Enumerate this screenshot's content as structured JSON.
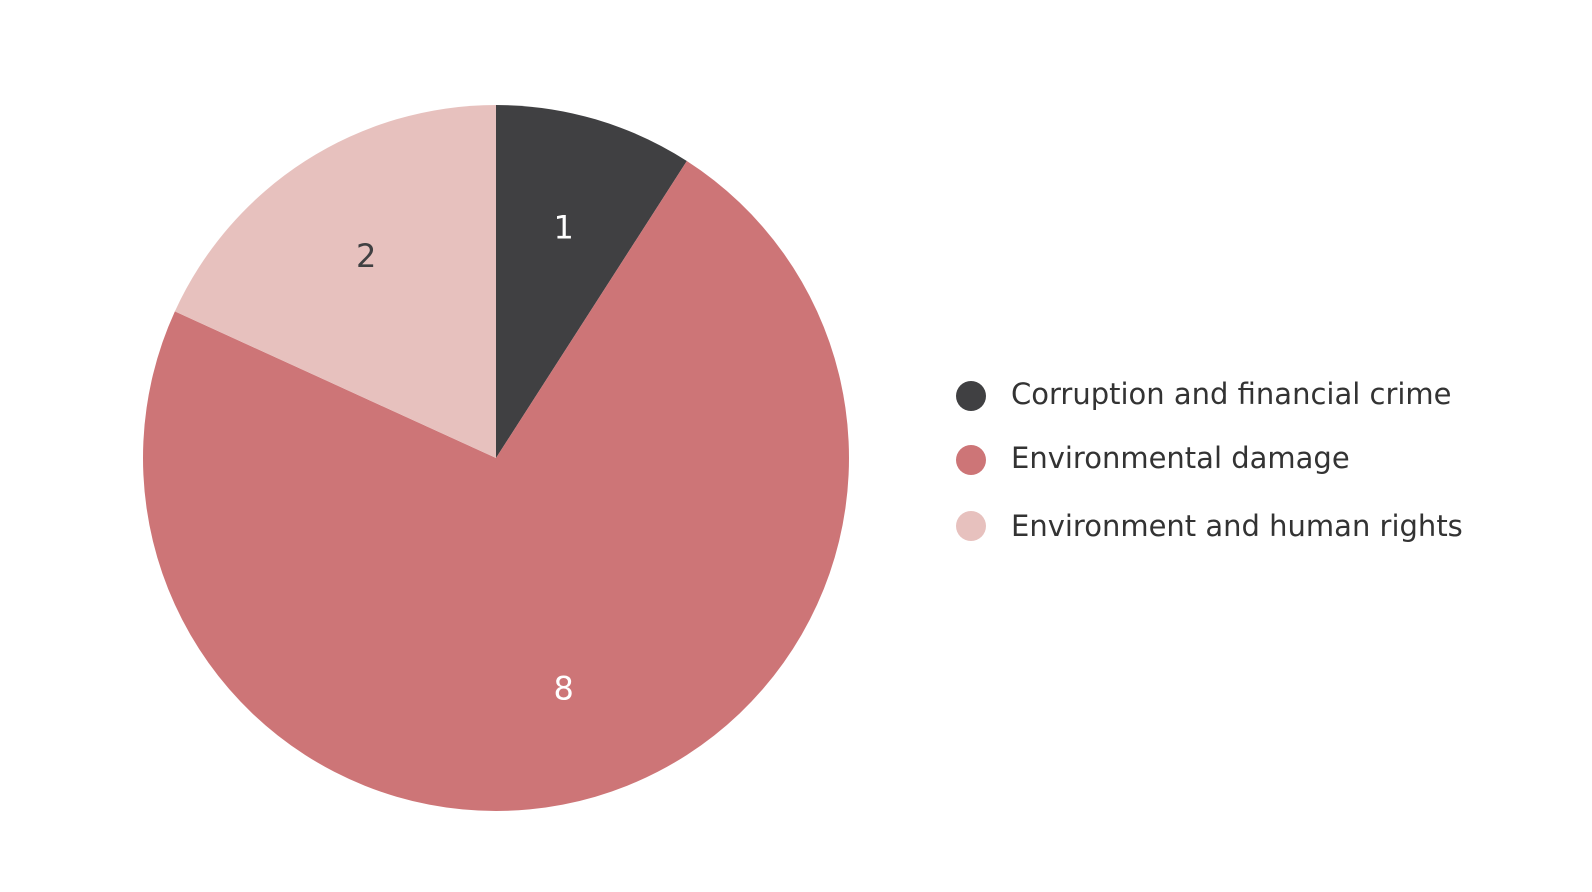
{
  "chart_data": {
    "type": "pie",
    "title": "",
    "categories": [
      "Corruption and financial crime",
      "Environmental damage",
      "Environment and human rights"
    ],
    "values": [
      1,
      8,
      2
    ],
    "colors": [
      "#404042",
      "#cd7577",
      "#e7c1be"
    ],
    "label_colors": [
      "#ffffff",
      "#ffffff",
      "#404042"
    ],
    "start_angle": "12 o'clock",
    "direction": "clockwise",
    "legend_position": "right",
    "legend": [
      {
        "label": "Corruption and financial crime",
        "color": "#404042"
      },
      {
        "label": "Environmental damage",
        "color": "#cd7577"
      },
      {
        "label": "Environment and human rights",
        "color": "#e7c1be"
      }
    ]
  }
}
